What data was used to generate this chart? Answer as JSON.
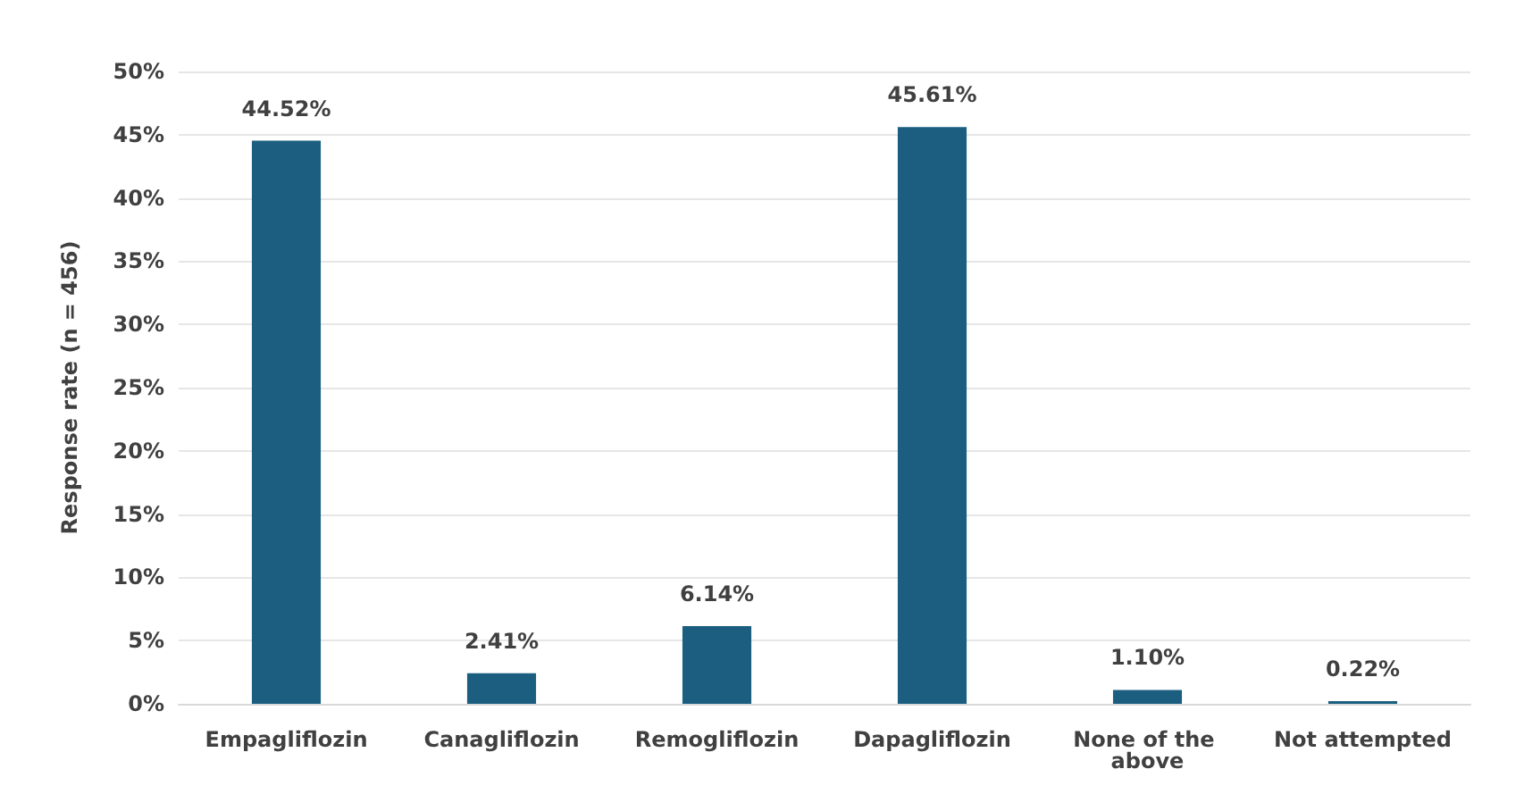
{
  "chart_data": {
    "type": "bar",
    "ylabel": "Response rate (n = 456)",
    "categories": [
      "Empagliflozin",
      "Canagliflozin",
      "Remogliflozin",
      "Dapagliflozin",
      "None of the above",
      "Not attempted"
    ],
    "values": [
      44.52,
      2.41,
      6.14,
      45.61,
      1.1,
      0.22
    ],
    "value_labels": [
      "44.52%",
      "2.41%",
      "6.14%",
      "45.61%",
      "1.10%",
      "0.22%"
    ],
    "color": "#1b5e80",
    "ylim": [
      0,
      50
    ],
    "yticks": [
      {
        "value": 0,
        "label": "0%"
      },
      {
        "value": 5,
        "label": "5%"
      },
      {
        "value": 10,
        "label": "10%"
      },
      {
        "value": 15,
        "label": "15%"
      },
      {
        "value": 20,
        "label": "20%"
      },
      {
        "value": 25,
        "label": "25%"
      },
      {
        "value": 30,
        "label": "30%"
      },
      {
        "value": 35,
        "label": "35%"
      },
      {
        "value": 40,
        "label": "40%"
      },
      {
        "value": 45,
        "label": "45%"
      },
      {
        "value": 50,
        "label": "50%"
      }
    ],
    "grid": "y"
  }
}
